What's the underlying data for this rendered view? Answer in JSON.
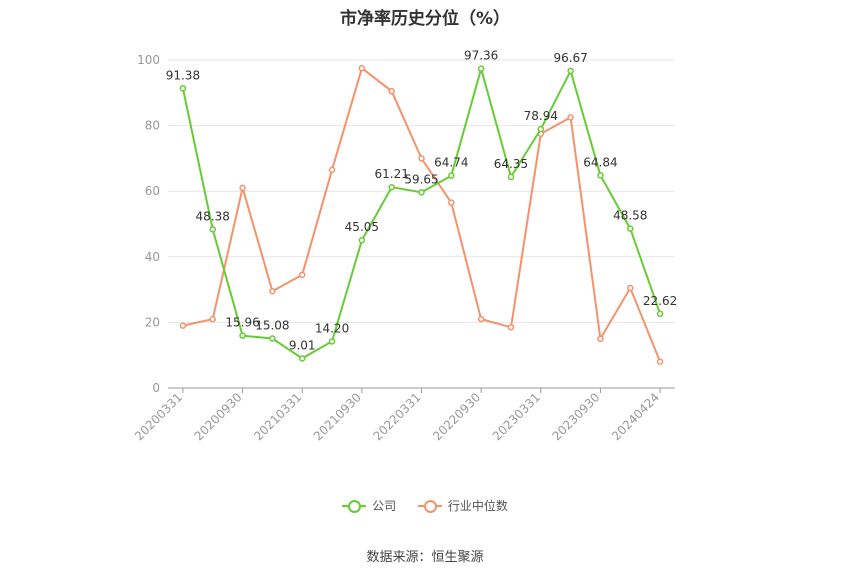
{
  "title": "市净率历史分位（%）",
  "source": "数据来源：恒生聚源",
  "colors": {
    "company": "#66cc33",
    "industry": "#f4926a",
    "grid": "#e6e6e6",
    "axis": "#999999",
    "text": "#333333"
  },
  "chart_data": {
    "type": "line",
    "title": "市净率历史分位（%）",
    "ylim": [
      0,
      100
    ],
    "yticks": [
      0,
      20,
      40,
      60,
      80,
      100
    ],
    "x_tick_labels": [
      "20200331",
      "20200930",
      "20210331",
      "20210930",
      "20220331",
      "20220930",
      "20230331",
      "20230930",
      "20240424"
    ],
    "grid": true,
    "legend": "bottom",
    "series": [
      {
        "name": "公司",
        "values": [
          91.38,
          48.38,
          15.96,
          15.08,
          9.01,
          14.2,
          45.05,
          61.21,
          59.65,
          64.74,
          97.36,
          64.35,
          78.94,
          96.67,
          64.84,
          48.58,
          22.62
        ],
        "labels": [
          "91.38",
          "48.38",
          "15.96",
          "15.08",
          "9.01",
          "14.20",
          "45.05",
          "61.21",
          "59.65",
          "64.74",
          "97.36",
          "64.35",
          "78.94",
          "96.67",
          "64.84",
          "48.58",
          "22.62"
        ]
      },
      {
        "name": "行业中位数",
        "values": [
          19,
          21,
          61,
          29.5,
          34.5,
          66.5,
          97.5,
          90.5,
          70,
          56.5,
          21,
          18.5,
          77.5,
          82.5,
          15,
          30.5,
          8
        ]
      }
    ]
  }
}
